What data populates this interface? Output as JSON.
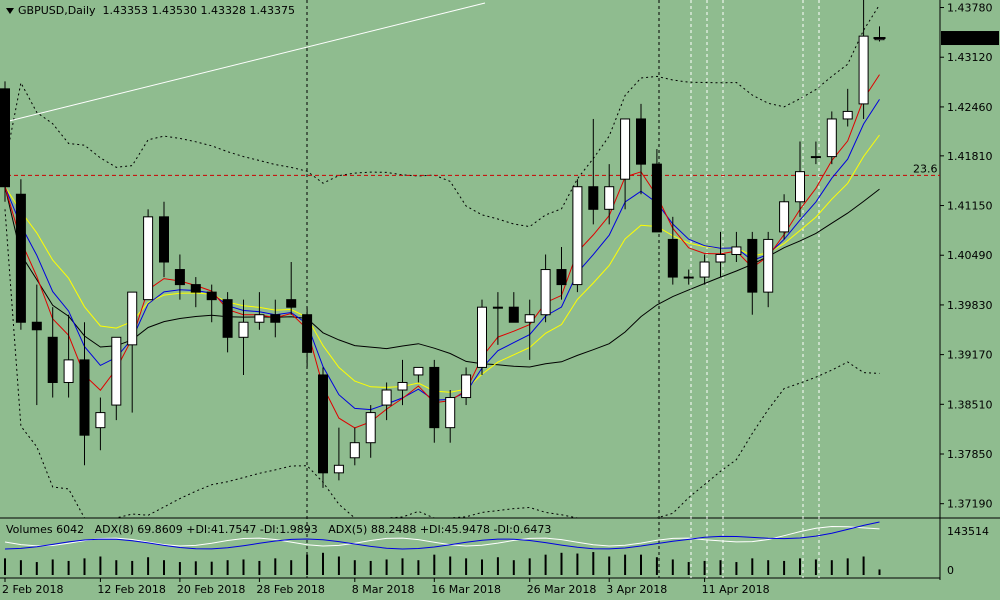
{
  "header": {
    "symbol": "GBPUSD,Daily",
    "ohlc": "1.43353 1.43530 1.43328 1.43375"
  },
  "indicator_header": {
    "volumes": "Volumes 6042",
    "adx8": "ADX(8) 69.8609 +DI:41.7547 -DI:1.9893",
    "adx5": "ADX(5) 88.2488 +DI:45.9478 -DI:0.6473"
  },
  "price_axis": {
    "ticks": [
      "1.43780",
      "1.43120",
      "1.42460",
      "1.41810",
      "1.41150",
      "1.40490",
      "1.39830",
      "1.39170",
      "1.38510",
      "1.37850",
      "1.37190"
    ],
    "current_price": "1.43375",
    "ylim": [
      1.37,
      1.4388
    ]
  },
  "volume_axis": {
    "ticks": [
      "143514",
      "0"
    ]
  },
  "date_axis": {
    "ticks": [
      "2 Feb 2018",
      "12 Feb 2018",
      "20 Feb 2018",
      "28 Feb 2018",
      "8 Mar 2018",
      "16 Mar 2018",
      "26 Mar 2018",
      "3 Apr 2018",
      "11 Apr 2018"
    ]
  },
  "fib_level": {
    "label": "23.6",
    "price": 1.4155
  },
  "colors": {
    "background": "#8fbc8f",
    "bull_candle": "#ffffff",
    "bear_candle": "#000000",
    "ma_red": "#e00000",
    "ma_blue": "#0000e0",
    "ma_yellow": "#ffff00",
    "ma_black": "#000000",
    "fib_line": "#cc0000",
    "trend_line": "#ffffff"
  },
  "chart_data": {
    "type": "candlestick",
    "title": "GBPUSD,Daily",
    "candles": [
      [
        1.427,
        1.428,
        1.412,
        1.414
      ],
      [
        1.413,
        1.415,
        1.395,
        1.396
      ],
      [
        1.396,
        1.401,
        1.385,
        1.395
      ],
      [
        1.394,
        1.398,
        1.386,
        1.388
      ],
      [
        1.388,
        1.397,
        1.386,
        1.391
      ],
      [
        1.391,
        1.396,
        1.377,
        1.381
      ],
      [
        1.382,
        1.386,
        1.379,
        1.384
      ],
      [
        1.385,
        1.394,
        1.383,
        1.394
      ],
      [
        1.393,
        1.4,
        1.384,
        1.4
      ],
      [
        1.399,
        1.411,
        1.399,
        1.41
      ],
      [
        1.41,
        1.412,
        1.402,
        1.404
      ],
      [
        1.403,
        1.405,
        1.399,
        1.401
      ],
      [
        1.401,
        1.402,
        1.398,
        1.4
      ],
      [
        1.4,
        1.401,
        1.396,
        1.399
      ],
      [
        1.399,
        1.4,
        1.392,
        1.394
      ],
      [
        1.394,
        1.399,
        1.389,
        1.396
      ],
      [
        1.396,
        1.4,
        1.395,
        1.397
      ],
      [
        1.397,
        1.399,
        1.394,
        1.396
      ],
      [
        1.399,
        1.404,
        1.397,
        1.398
      ],
      [
        1.397,
        1.398,
        1.39,
        1.392
      ],
      [
        1.389,
        1.39,
        1.374,
        1.376
      ],
      [
        1.376,
        1.382,
        1.375,
        1.377
      ],
      [
        1.378,
        1.382,
        1.377,
        1.38
      ],
      [
        1.38,
        1.385,
        1.378,
        1.384
      ],
      [
        1.385,
        1.388,
        1.383,
        1.387
      ],
      [
        1.387,
        1.391,
        1.385,
        1.388
      ],
      [
        1.389,
        1.39,
        1.388,
        1.39
      ],
      [
        1.39,
        1.391,
        1.38,
        1.382
      ],
      [
        1.382,
        1.387,
        1.38,
        1.386
      ],
      [
        1.386,
        1.39,
        1.385,
        1.389
      ],
      [
        1.39,
        1.399,
        1.389,
        1.398
      ],
      [
        1.398,
        1.4,
        1.393,
        1.398
      ],
      [
        1.398,
        1.4,
        1.396,
        1.396
      ],
      [
        1.396,
        1.399,
        1.391,
        1.397
      ],
      [
        1.397,
        1.405,
        1.396,
        1.403
      ],
      [
        1.403,
        1.406,
        1.399,
        1.401
      ],
      [
        1.401,
        1.415,
        1.4,
        1.414
      ],
      [
        1.414,
        1.423,
        1.409,
        1.411
      ],
      [
        1.411,
        1.417,
        1.409,
        1.414
      ],
      [
        1.415,
        1.423,
        1.411,
        1.423
      ],
      [
        1.423,
        1.425,
        1.413,
        1.417
      ],
      [
        1.417,
        1.419,
        1.408,
        1.408
      ],
      [
        1.407,
        1.41,
        1.401,
        1.402
      ],
      [
        1.402,
        1.403,
        1.401,
        1.402
      ],
      [
        1.402,
        1.405,
        1.401,
        1.404
      ],
      [
        1.404,
        1.408,
        1.402,
        1.405
      ],
      [
        1.405,
        1.408,
        1.404,
        1.406
      ],
      [
        1.407,
        1.408,
        1.397,
        1.4
      ],
      [
        1.4,
        1.408,
        1.398,
        1.407
      ],
      [
        1.408,
        1.413,
        1.407,
        1.412
      ],
      [
        1.412,
        1.42,
        1.41,
        1.416
      ],
      [
        1.418,
        1.42,
        1.417,
        1.418
      ],
      [
        1.418,
        1.424,
        1.417,
        1.423
      ],
      [
        1.423,
        1.427,
        1.422,
        1.424
      ],
      [
        1.425,
        1.439,
        1.423,
        1.434
      ],
      [
        1.43353,
        1.4353,
        1.43328,
        1.43375
      ]
    ],
    "volumes": [
      0.45,
      0.4,
      0.35,
      0.42,
      0.38,
      0.45,
      0.5,
      0.4,
      0.38,
      0.48,
      0.4,
      0.35,
      0.37,
      0.36,
      0.4,
      0.42,
      0.38,
      0.45,
      0.4,
      0.55,
      0.6,
      0.5,
      0.4,
      0.38,
      0.42,
      0.45,
      0.4,
      0.55,
      0.5,
      0.45,
      0.42,
      0.48,
      0.4,
      0.45,
      0.55,
      0.6,
      0.58,
      0.62,
      0.5,
      0.55,
      0.55,
      0.48,
      0.42,
      0.35,
      0.38,
      0.4,
      0.35,
      0.45,
      0.4,
      0.38,
      0.45,
      0.42,
      0.4,
      0.45,
      0.5,
      0.15
    ]
  }
}
